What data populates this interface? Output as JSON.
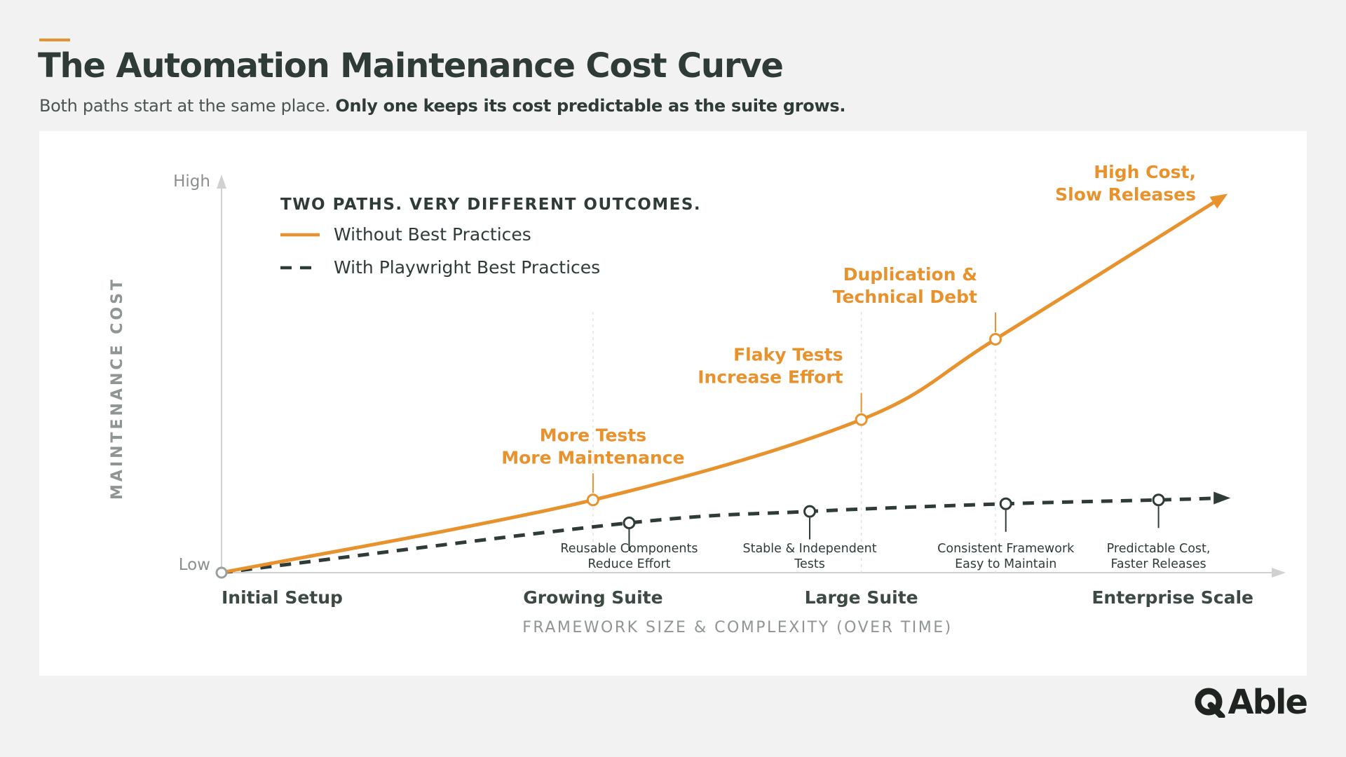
{
  "header": {
    "title": "The Automation Maintenance Cost Curve",
    "subtitle_plain": "Both paths start at the same place.",
    "subtitle_bold": "Only one keeps its cost predictable as the suite grows."
  },
  "logo": {
    "text": "Able",
    "icon": "q-logo-icon",
    "full_text": "QAble"
  },
  "colors": {
    "accent": "#e8922e",
    "dark": "#2f3b36",
    "axis": "#cfd2d1",
    "muted": "#8a8f8c",
    "background": "#f2f2f2",
    "card": "#ffffff"
  },
  "chart_data": {
    "type": "line",
    "title": "",
    "legend_title": "TWO PATHS. VERY DIFFERENT OUTCOMES.",
    "legend_placement": "top-left",
    "xlabel": "FRAMEWORK SIZE & COMPLEXITY (OVER TIME)",
    "ylabel": "MAINTENANCE COST",
    "y_ticks": [
      "Low",
      "High"
    ],
    "x_ticks": [
      "Initial Setup",
      "Growing Suite",
      "Large Suite",
      "Enterprise Scale"
    ],
    "xlim": [
      0,
      100
    ],
    "ylim": [
      0,
      100
    ],
    "grid": false,
    "series": [
      {
        "name": "Without Best Practices",
        "style": "solid",
        "color": "#e8922e",
        "points": [
          {
            "x": 0,
            "y": 0
          },
          {
            "x": 36,
            "y": 19
          },
          {
            "x": 62,
            "y": 40
          },
          {
            "x": 75,
            "y": 61
          },
          {
            "x": 97.5,
            "y": 99
          }
        ],
        "markers": [
          {
            "x": 36,
            "y": 19,
            "label": [
              "More Tests",
              "More Maintenance"
            ]
          },
          {
            "x": 62,
            "y": 40,
            "label": [
              "Flaky Tests",
              "Increase Effort"
            ]
          },
          {
            "x": 75,
            "y": 61,
            "label": [
              "Duplication &",
              "Technical Debt"
            ]
          }
        ],
        "end_label": [
          "High Cost,",
          "Slow Releases"
        ]
      },
      {
        "name": "With Playwright Best Practices",
        "style": "dashed",
        "color": "#2f3b36",
        "points": [
          {
            "x": 0,
            "y": 0
          },
          {
            "x": 39.5,
            "y": 13
          },
          {
            "x": 57,
            "y": 16
          },
          {
            "x": 76,
            "y": 18
          },
          {
            "x": 90.8,
            "y": 19
          },
          {
            "x": 97.5,
            "y": 19.5
          }
        ],
        "markers": [
          {
            "x": 39.5,
            "y": 13,
            "label": [
              "Reusable Components",
              "Reduce Effort"
            ]
          },
          {
            "x": 57,
            "y": 16,
            "label": [
              "Stable & Independent",
              "Tests"
            ]
          },
          {
            "x": 76,
            "y": 18,
            "label": [
              "Consistent Framework",
              "Easy to Maintain"
            ]
          },
          {
            "x": 90.8,
            "y": 19,
            "label": [
              "Predictable Cost,",
              "Faster Releases"
            ]
          }
        ]
      }
    ]
  }
}
